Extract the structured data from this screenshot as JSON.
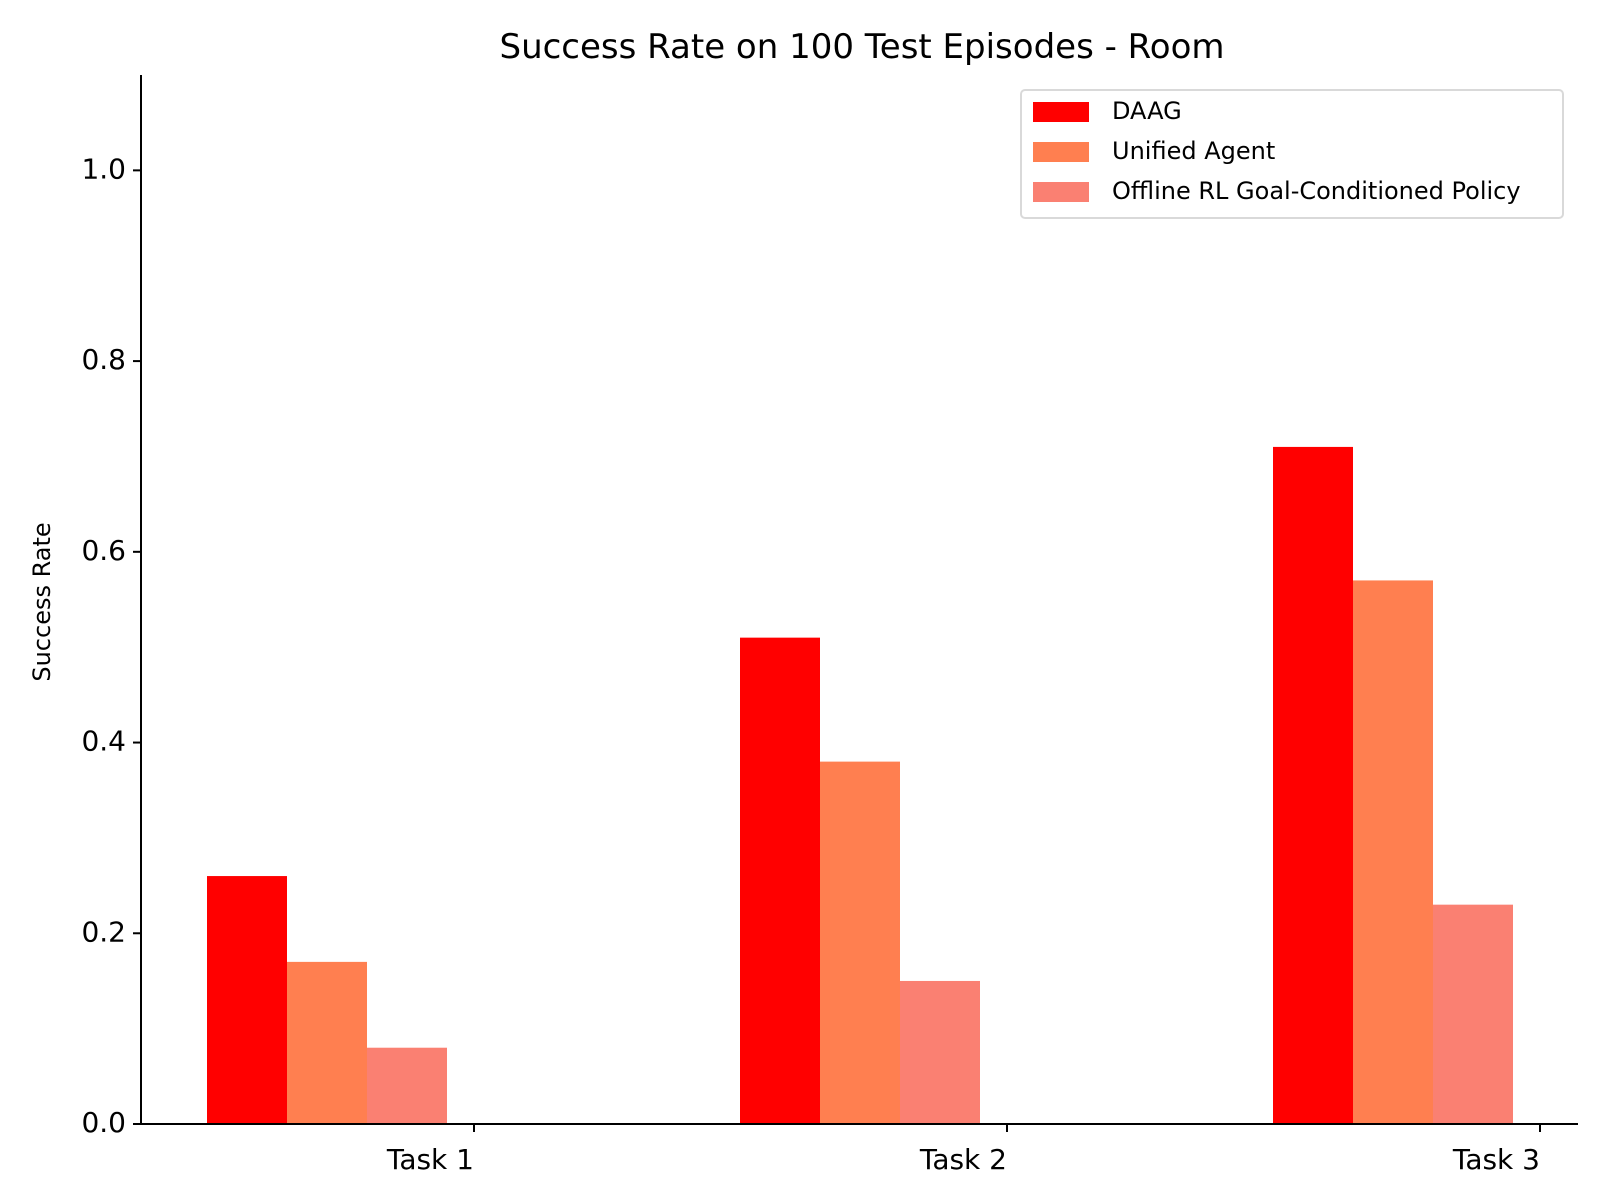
{
  "chart_data": {
    "type": "bar",
    "title": "Success Rate on 100 Test Episodes - Room",
    "xlabel": "",
    "ylabel": "Success Rate",
    "categories": [
      "Task 1",
      "Task 2",
      "Task 3"
    ],
    "series": [
      {
        "name": "DAAG",
        "values": [
          0.26,
          0.51,
          0.71
        ],
        "color": "#ff0000"
      },
      {
        "name": "Unified Agent",
        "values": [
          0.17,
          0.38,
          0.57
        ],
        "color": "#ff7f50"
      },
      {
        "name": "Offline RL Goal-Conditioned Policy",
        "values": [
          0.08,
          0.15,
          0.23
        ],
        "color": "#fa8072"
      }
    ],
    "ylim": [
      0,
      1.1
    ],
    "yticks": [
      0.0,
      0.2,
      0.4,
      0.6,
      0.8,
      1.0
    ],
    "ytick_labels": [
      "0.0",
      "0.2",
      "0.4",
      "0.6",
      "0.8",
      "1.0"
    ],
    "grid": false,
    "legend_position": "top-right"
  }
}
